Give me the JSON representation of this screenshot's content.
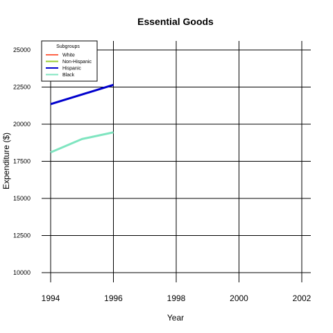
{
  "chart_data": {
    "type": "line",
    "title": "Essential Goods",
    "xlabel": "Year",
    "ylabel": "Expenditure ($)",
    "xlim": [
      1994,
      2002
    ],
    "ylim": [
      10000,
      25000
    ],
    "xticks": [
      1994,
      1996,
      1998,
      2000,
      2002
    ],
    "yticks": [
      10000,
      12500,
      15000,
      17500,
      20000,
      22500,
      25000
    ],
    "grid": true,
    "legend": {
      "title": "Subgroups",
      "placement": "top-left",
      "entries": [
        "White",
        "Non-Hispanic",
        "Hispanic",
        "Black"
      ]
    },
    "series": [
      {
        "name": "White",
        "color": "#FF6347",
        "x": [],
        "y": []
      },
      {
        "name": "Non-Hispanic",
        "color": "#9ACD32",
        "x": [],
        "y": []
      },
      {
        "name": "Hispanic",
        "color": "#0000CD",
        "x": [
          1994,
          1995,
          1996
        ],
        "y": [
          21350,
          22000,
          22650
        ]
      },
      {
        "name": "Black",
        "color": "#7FE5C0",
        "x": [
          1994,
          1995,
          1996
        ],
        "y": [
          18100,
          19000,
          19450
        ]
      }
    ]
  }
}
